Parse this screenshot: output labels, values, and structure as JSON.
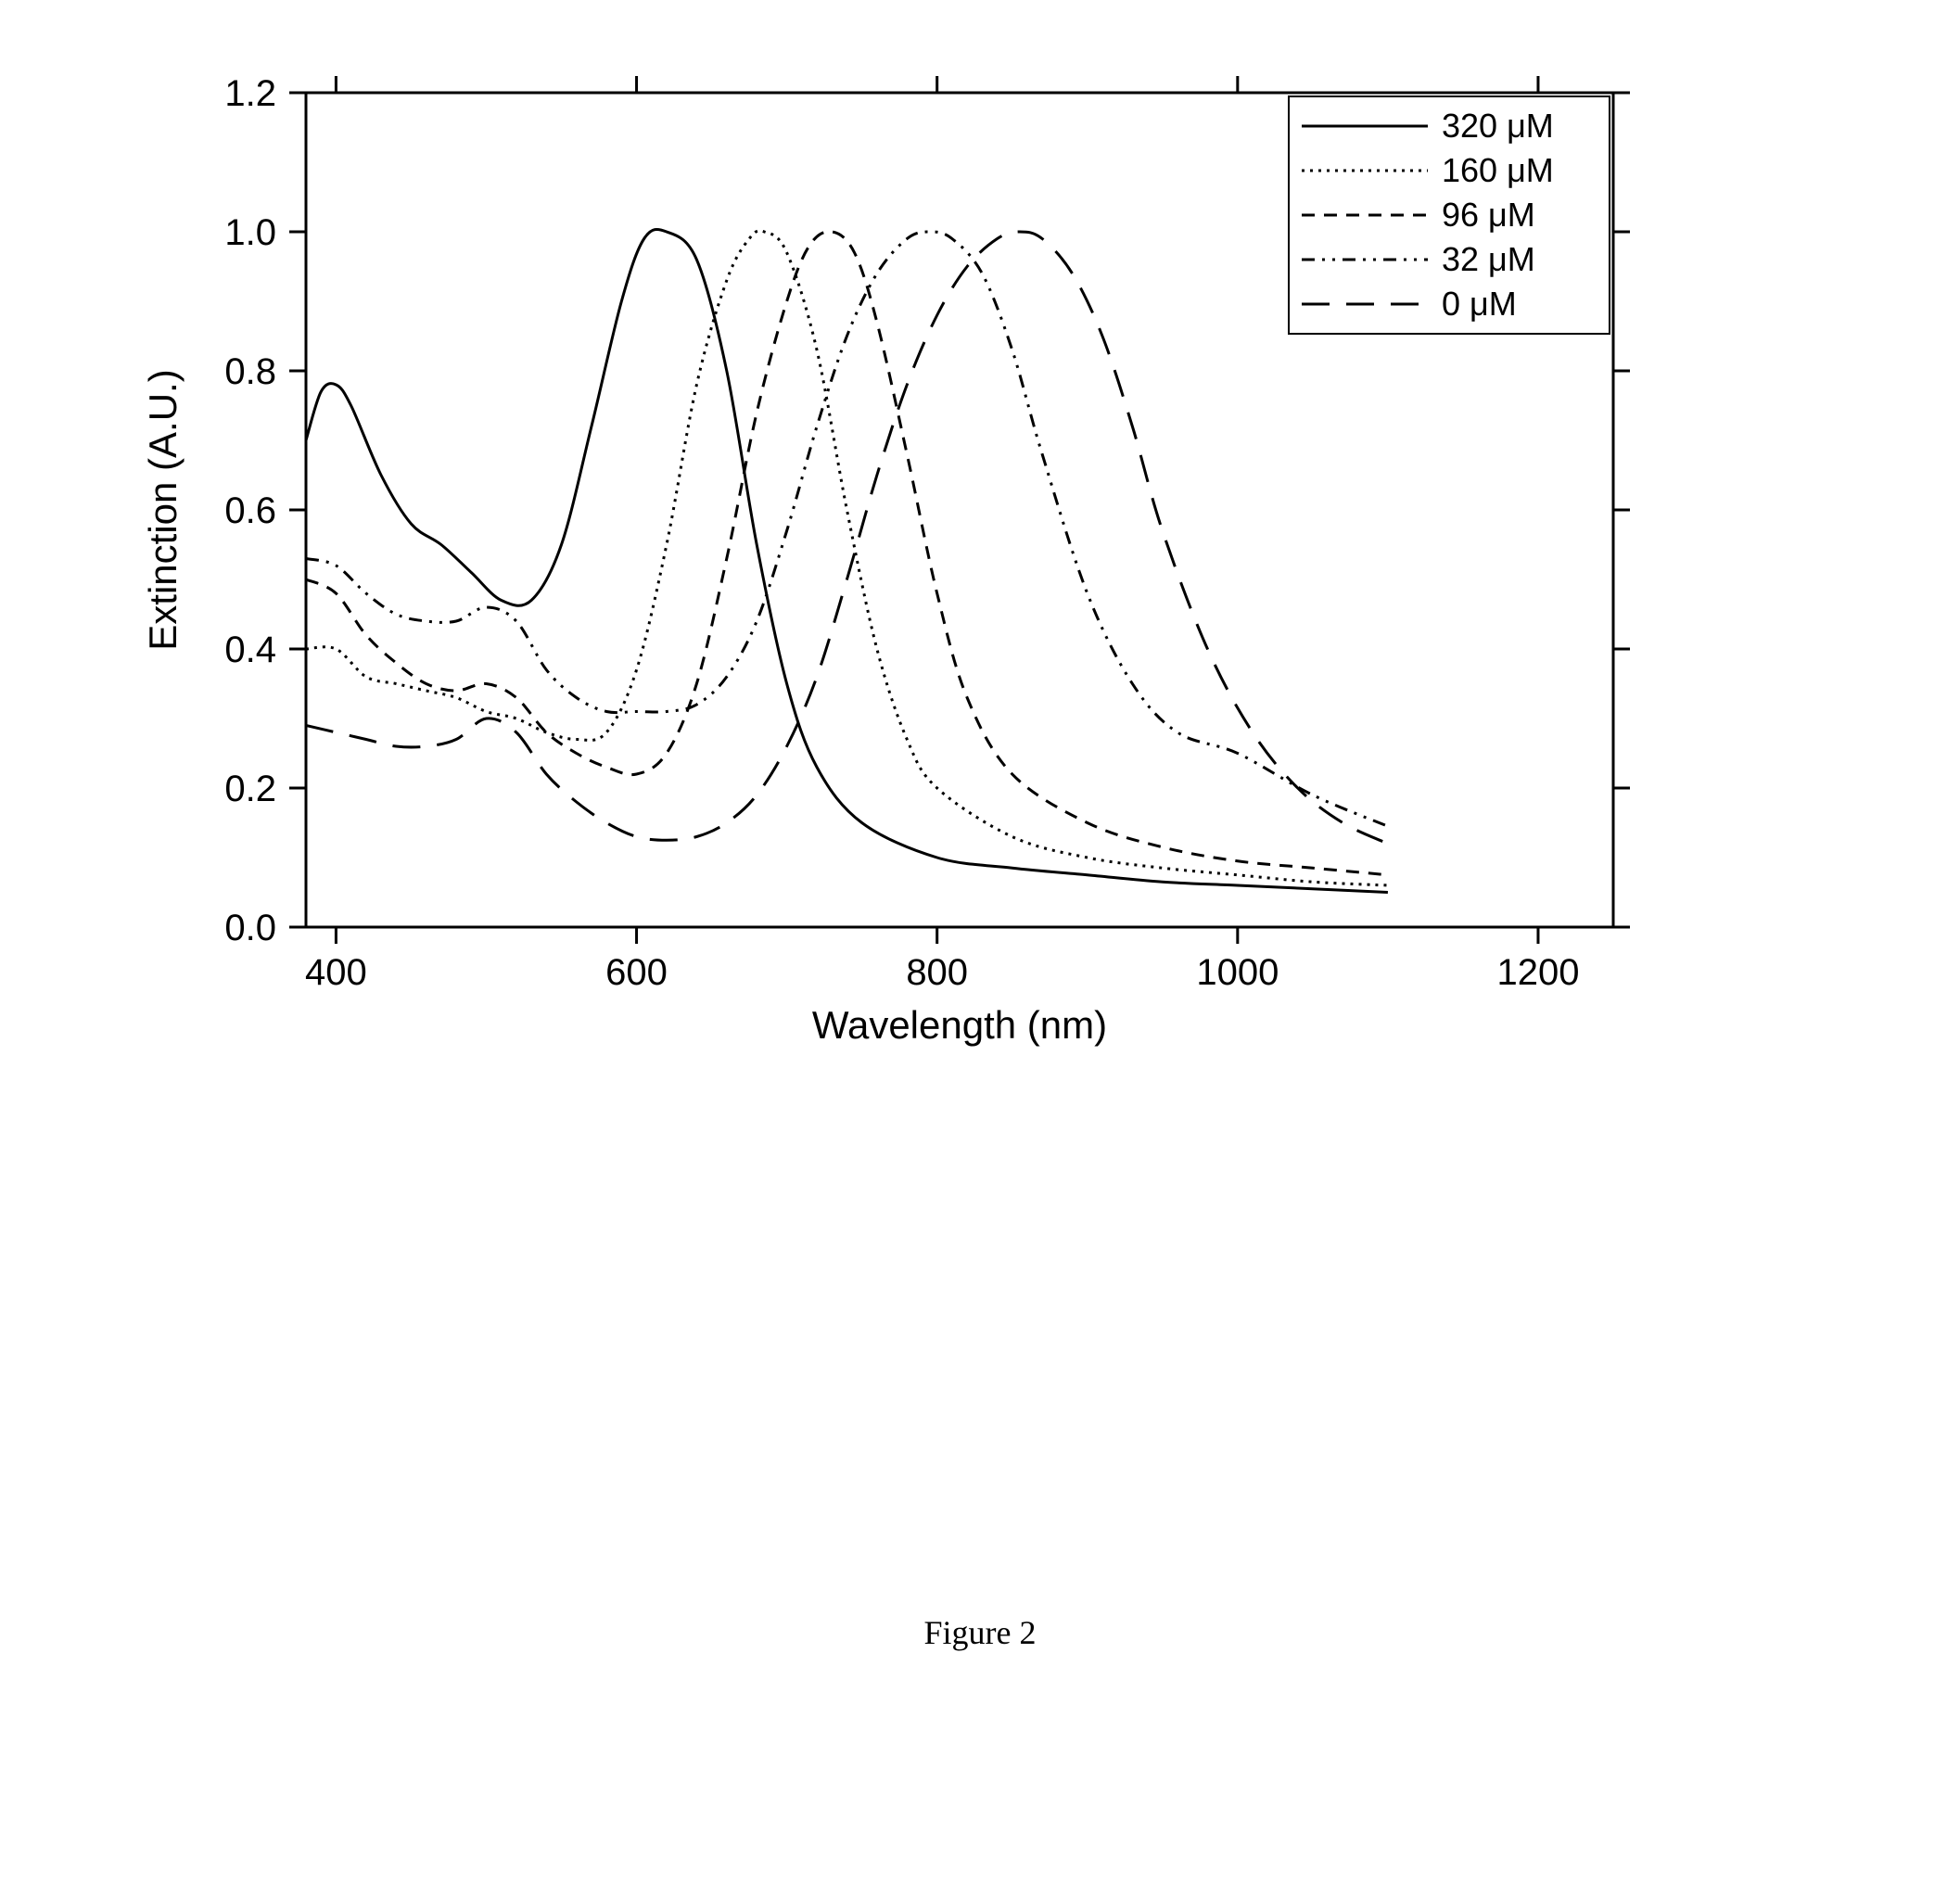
{
  "chart": {
    "type": "line",
    "xlabel": "Wavelength (nm)",
    "ylabel": "Extinction (A.U.)",
    "xlabel_fontsize": 42,
    "ylabel_fontsize": 42,
    "tick_fontsize": 40,
    "axis_color": "#000000",
    "axis_linewidth": 3,
    "tick_length_major": 18,
    "background_color": "#ffffff",
    "line_color": "#000000",
    "line_width": 3,
    "xlim": [
      380,
      1250
    ],
    "ylim": [
      0.0,
      1.2
    ],
    "xticks": [
      400,
      600,
      800,
      1000,
      1200
    ],
    "yticks": [
      0.0,
      0.2,
      0.4,
      0.6,
      0.8,
      1.0,
      1.2
    ],
    "ytick_labels": [
      "0.0",
      "0.2",
      "0.4",
      "0.6",
      "0.8",
      "1.0",
      "1.2"
    ],
    "legend": {
      "position": "top-right",
      "fontsize": 36,
      "border_color": "#000000",
      "border_width": 2,
      "background": "#ffffff",
      "items": [
        {
          "label": "320 μM",
          "dash": []
        },
        {
          "label": "160 μM",
          "dash": [
            3,
            6
          ]
        },
        {
          "label": "96 μM",
          "dash": [
            14,
            10
          ]
        },
        {
          "label": "32 μM",
          "dash": [
            14,
            8,
            3,
            8,
            3,
            8
          ]
        },
        {
          "label": "0 μM",
          "dash": [
            30,
            18
          ]
        }
      ]
    },
    "series": [
      {
        "name": "320 μM",
        "dash": [],
        "points": [
          [
            380,
            0.7
          ],
          [
            390,
            0.77
          ],
          [
            400,
            0.78
          ],
          [
            410,
            0.75
          ],
          [
            430,
            0.65
          ],
          [
            450,
            0.58
          ],
          [
            470,
            0.55
          ],
          [
            490,
            0.51
          ],
          [
            510,
            0.47
          ],
          [
            530,
            0.47
          ],
          [
            550,
            0.55
          ],
          [
            570,
            0.72
          ],
          [
            590,
            0.9
          ],
          [
            605,
            0.99
          ],
          [
            620,
            1.0
          ],
          [
            640,
            0.96
          ],
          [
            660,
            0.8
          ],
          [
            680,
            0.55
          ],
          [
            700,
            0.35
          ],
          [
            720,
            0.23
          ],
          [
            750,
            0.15
          ],
          [
            800,
            0.1
          ],
          [
            850,
            0.085
          ],
          [
            900,
            0.075
          ],
          [
            950,
            0.065
          ],
          [
            1000,
            0.06
          ],
          [
            1050,
            0.055
          ],
          [
            1100,
            0.05
          ]
        ]
      },
      {
        "name": "160 μM",
        "dash": [
          3,
          6
        ],
        "points": [
          [
            380,
            0.4
          ],
          [
            400,
            0.4
          ],
          [
            420,
            0.36
          ],
          [
            440,
            0.35
          ],
          [
            460,
            0.34
          ],
          [
            480,
            0.33
          ],
          [
            500,
            0.31
          ],
          [
            520,
            0.3
          ],
          [
            540,
            0.28
          ],
          [
            560,
            0.27
          ],
          [
            580,
            0.28
          ],
          [
            600,
            0.37
          ],
          [
            620,
            0.55
          ],
          [
            640,
            0.78
          ],
          [
            660,
            0.93
          ],
          [
            675,
            0.99
          ],
          [
            685,
            1.0
          ],
          [
            700,
            0.97
          ],
          [
            720,
            0.83
          ],
          [
            740,
            0.6
          ],
          [
            760,
            0.4
          ],
          [
            780,
            0.27
          ],
          [
            800,
            0.2
          ],
          [
            850,
            0.13
          ],
          [
            900,
            0.1
          ],
          [
            950,
            0.085
          ],
          [
            1000,
            0.075
          ],
          [
            1050,
            0.065
          ],
          [
            1100,
            0.06
          ]
        ]
      },
      {
        "name": "96 μM",
        "dash": [
          14,
          10
        ],
        "points": [
          [
            380,
            0.5
          ],
          [
            400,
            0.48
          ],
          [
            420,
            0.42
          ],
          [
            440,
            0.38
          ],
          [
            460,
            0.35
          ],
          [
            480,
            0.34
          ],
          [
            500,
            0.35
          ],
          [
            520,
            0.33
          ],
          [
            540,
            0.28
          ],
          [
            560,
            0.25
          ],
          [
            580,
            0.23
          ],
          [
            600,
            0.22
          ],
          [
            620,
            0.25
          ],
          [
            640,
            0.35
          ],
          [
            660,
            0.53
          ],
          [
            680,
            0.74
          ],
          [
            700,
            0.9
          ],
          [
            715,
            0.98
          ],
          [
            730,
            1.0
          ],
          [
            745,
            0.97
          ],
          [
            760,
            0.87
          ],
          [
            780,
            0.68
          ],
          [
            800,
            0.48
          ],
          [
            820,
            0.33
          ],
          [
            850,
            0.22
          ],
          [
            900,
            0.15
          ],
          [
            950,
            0.115
          ],
          [
            1000,
            0.095
          ],
          [
            1050,
            0.085
          ],
          [
            1100,
            0.075
          ]
        ]
      },
      {
        "name": "32 μM",
        "dash": [
          14,
          8,
          3,
          8,
          3,
          8
        ],
        "points": [
          [
            380,
            0.53
          ],
          [
            400,
            0.52
          ],
          [
            420,
            0.48
          ],
          [
            440,
            0.45
          ],
          [
            460,
            0.44
          ],
          [
            480,
            0.44
          ],
          [
            500,
            0.46
          ],
          [
            520,
            0.44
          ],
          [
            540,
            0.37
          ],
          [
            560,
            0.33
          ],
          [
            580,
            0.31
          ],
          [
            600,
            0.31
          ],
          [
            620,
            0.31
          ],
          [
            640,
            0.32
          ],
          [
            660,
            0.36
          ],
          [
            680,
            0.44
          ],
          [
            700,
            0.57
          ],
          [
            720,
            0.72
          ],
          [
            740,
            0.85
          ],
          [
            760,
            0.94
          ],
          [
            780,
            0.99
          ],
          [
            795,
            1.0
          ],
          [
            810,
            0.99
          ],
          [
            830,
            0.94
          ],
          [
            850,
            0.83
          ],
          [
            870,
            0.68
          ],
          [
            900,
            0.48
          ],
          [
            930,
            0.35
          ],
          [
            960,
            0.28
          ],
          [
            1000,
            0.25
          ],
          [
            1050,
            0.19
          ],
          [
            1100,
            0.145
          ]
        ]
      },
      {
        "name": "0 μM",
        "dash": [
          30,
          18
        ],
        "points": [
          [
            380,
            0.29
          ],
          [
            400,
            0.28
          ],
          [
            420,
            0.27
          ],
          [
            440,
            0.26
          ],
          [
            460,
            0.26
          ],
          [
            480,
            0.27
          ],
          [
            500,
            0.3
          ],
          [
            520,
            0.28
          ],
          [
            540,
            0.22
          ],
          [
            560,
            0.18
          ],
          [
            580,
            0.15
          ],
          [
            600,
            0.13
          ],
          [
            620,
            0.125
          ],
          [
            640,
            0.13
          ],
          [
            660,
            0.15
          ],
          [
            680,
            0.19
          ],
          [
            700,
            0.26
          ],
          [
            720,
            0.36
          ],
          [
            740,
            0.5
          ],
          [
            760,
            0.65
          ],
          [
            780,
            0.78
          ],
          [
            800,
            0.88
          ],
          [
            820,
            0.95
          ],
          [
            840,
            0.99
          ],
          [
            855,
            1.0
          ],
          [
            870,
            0.99
          ],
          [
            890,
            0.94
          ],
          [
            910,
            0.85
          ],
          [
            930,
            0.72
          ],
          [
            950,
            0.57
          ],
          [
            980,
            0.4
          ],
          [
            1010,
            0.28
          ],
          [
            1040,
            0.2
          ],
          [
            1070,
            0.15
          ],
          [
            1100,
            0.12
          ]
        ]
      }
    ]
  },
  "caption": "Figure 2"
}
